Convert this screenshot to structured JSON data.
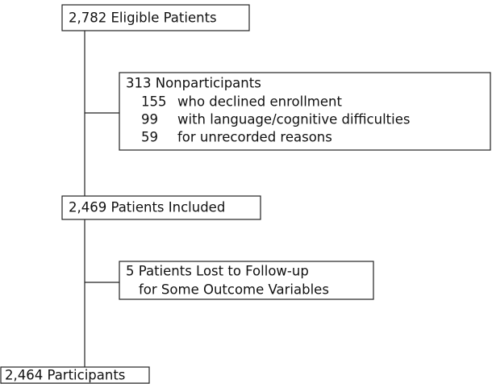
{
  "nodes": [
    {
      "label": "2,782 Eligible Patients"
    },
    {
      "label": "313 Nonparticipants",
      "items": [
        {
          "count": "155",
          "text": "who declined enrollment"
        },
        {
          "count": "99",
          "text": "with language/cognitive difficulties"
        },
        {
          "count": "59",
          "text": "for unrecorded reasons"
        }
      ]
    },
    {
      "label": "2,469 Patients Included"
    },
    {
      "label": "5 Patients Lost to Follow-up",
      "sublabel": "for Some Outcome Variables"
    },
    {
      "label": "2,464 Participants"
    }
  ]
}
